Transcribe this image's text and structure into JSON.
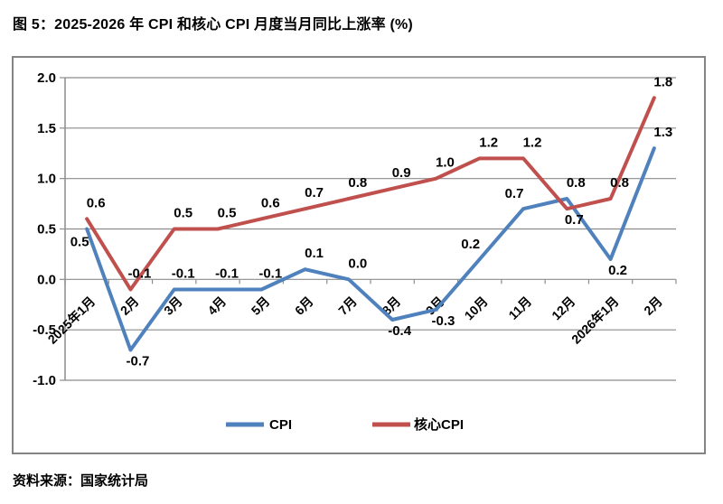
{
  "page": {
    "title": "图 5：2025-2026 年 CPI 和核心 CPI 月度当月同比上涨率 (%)",
    "source": "资料来源：国家统计局"
  },
  "chart_data": {
    "type": "line",
    "title": "图 5：2025-2026 年 CPI 和核心 CPI 月度当月同比上涨率 (%)",
    "categories": [
      "2025年1月",
      "2月",
      "3月",
      "4月",
      "5月",
      "6月",
      "7月",
      "8月",
      "9月",
      "10月",
      "11月",
      "12月",
      "2026年1月",
      "2月"
    ],
    "series": [
      {
        "name": "CPI",
        "color": "#4F81BD",
        "values": [
          0.5,
          -0.7,
          -0.1,
          -0.1,
          -0.1,
          0.1,
          0.0,
          -0.4,
          -0.3,
          0.2,
          0.7,
          0.8,
          0.2,
          1.3
        ],
        "label_pos": [
          "below-left",
          "below",
          "above",
          "above",
          "above",
          "above",
          "above",
          "below",
          "below",
          "above-left",
          "above-left",
          "above",
          "below",
          "above"
        ]
      },
      {
        "name": "核心CPI",
        "color": "#C0504D",
        "values": [
          0.6,
          -0.1,
          0.5,
          0.5,
          0.6,
          0.7,
          0.8,
          0.9,
          1.0,
          1.2,
          1.2,
          0.7,
          0.8,
          1.8
        ],
        "label_pos": [
          "above",
          "above",
          "above",
          "above",
          "above",
          "above",
          "above",
          "above",
          "above",
          "above",
          "above",
          "below",
          "above",
          "above"
        ]
      }
    ],
    "ylim": [
      -1.0,
      2.0
    ],
    "ytick_step": 0.5,
    "ytick_labels": [
      "2.0",
      "1.5",
      "1.0",
      "0.5",
      "0.0",
      "-0.5",
      "-1.0"
    ],
    "grid": true,
    "legend_position": "bottom",
    "axis_color": "#8C8C8C",
    "label_color": "#000000"
  }
}
